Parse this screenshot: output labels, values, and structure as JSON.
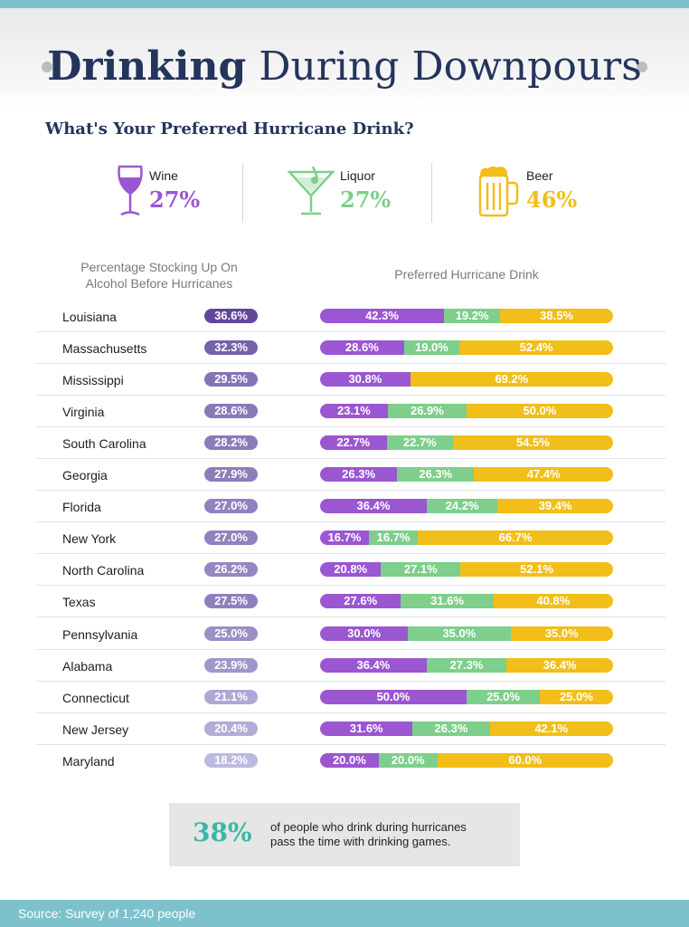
{
  "title": {
    "bold": "Drinking",
    "rest": " During Downpours"
  },
  "subtitle": "What's Your Preferred Hurricane Drink?",
  "drinks": [
    {
      "name": "Wine",
      "pct": "27%",
      "icon": "wine-glass-icon",
      "color": "#9b56d1"
    },
    {
      "name": "Liquor",
      "pct": "27%",
      "icon": "martini-glass-icon",
      "color": "#7dcf8b"
    },
    {
      "name": "Beer",
      "pct": "46%",
      "icon": "beer-mug-icon",
      "color": "#f1be1a"
    }
  ],
  "columns": {
    "stocking": "Percentage Stocking Up On Alcohol Before Hurricanes",
    "preferred": "Preferred Hurricane Drink"
  },
  "colors": {
    "wine": "#9b56d1",
    "liquor": "#7dcf8b",
    "beer": "#f1be1a",
    "accent": "#3db6a6",
    "footer": "#7cc1cb"
  },
  "chart_data": {
    "type": "bar",
    "title": "What's Your Preferred Hurricane Drink?",
    "categories": [
      "Louisiana",
      "Massachusetts",
      "Mississippi",
      "Virginia",
      "South Carolina",
      "Georgia",
      "Florida",
      "New York",
      "North Carolina",
      "Texas",
      "Pennsylvania",
      "Alabama",
      "Connecticut",
      "New Jersey",
      "Maryland"
    ],
    "stocking_up": [
      36.6,
      32.3,
      29.5,
      28.6,
      28.2,
      27.9,
      27.0,
      27.0,
      26.2,
      27.5,
      25.0,
      23.9,
      21.1,
      20.4,
      18.2
    ],
    "stocking_labels": [
      "36.6%",
      "32.3%",
      "29.5%",
      "28.6%",
      "28.2%",
      "27.9%",
      "27.0%",
      "27.0%",
      "26.2%",
      "27.5%",
      "25.0%",
      "23.9%",
      "21.1%",
      "20.4%",
      "18.2%"
    ],
    "series": [
      {
        "name": "Wine",
        "values": [
          42.3,
          28.6,
          30.8,
          23.1,
          22.7,
          26.3,
          36.4,
          16.7,
          20.8,
          27.6,
          30.0,
          36.4,
          50.0,
          31.6,
          20.0
        ],
        "labels": [
          "42.3%",
          "28.6%",
          "30.8%",
          "23.1%",
          "22.7%",
          "26.3%",
          "36.4%",
          "16.7%",
          "20.8%",
          "27.6%",
          "30.0%",
          "36.4%",
          "50.0%",
          "31.6%",
          "20.0%"
        ]
      },
      {
        "name": "Liquor",
        "values": [
          19.2,
          19.0,
          0,
          26.9,
          22.7,
          26.3,
          24.2,
          16.7,
          27.1,
          31.6,
          35.0,
          27.3,
          25.0,
          26.3,
          20.0
        ],
        "labels": [
          "19.2%",
          "19.0%",
          "",
          "26.9%",
          "22.7%",
          "26.3%",
          "24.2%",
          "16.7%",
          "27.1%",
          "31.6%",
          "35.0%",
          "27.3%",
          "25.0%",
          "26.3%",
          "20.0%"
        ]
      },
      {
        "name": "Beer",
        "values": [
          38.5,
          52.4,
          69.2,
          50.0,
          54.5,
          47.4,
          39.4,
          66.7,
          52.1,
          40.8,
          35.0,
          36.4,
          25.0,
          42.1,
          60.0
        ],
        "labels": [
          "38.5%",
          "52.4%",
          "69.2%",
          "50.0%",
          "54.5%",
          "47.4%",
          "39.4%",
          "66.7%",
          "52.1%",
          "40.8%",
          "35.0%",
          "36.4%",
          "25.0%",
          "42.1%",
          "60.0%"
        ]
      }
    ]
  },
  "callout": {
    "big": "38%",
    "line1": "of people who drink during hurricanes",
    "line2": "pass the time with drinking games."
  },
  "footer": {
    "source": "Source: Survey of 1,240 people"
  }
}
